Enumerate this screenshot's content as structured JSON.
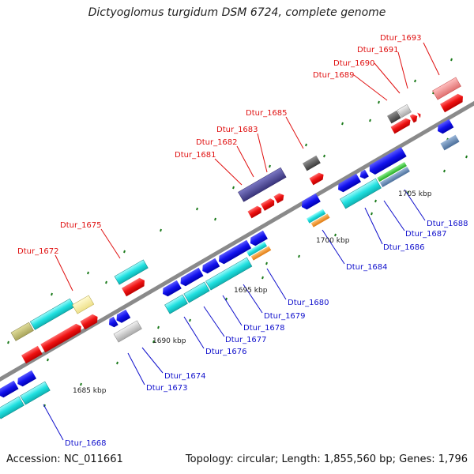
{
  "title": "Dictyoglomus turgidum DSM 6724, complete genome",
  "footer": {
    "accession": "Accession: NC_011661",
    "summary": "Topology: circular; Length: 1,855,560 bp; Genes: 1,796"
  },
  "scale_labels": [
    "1685 kbp",
    "1690 kbp",
    "1695 kbp",
    "1700 kbp",
    "1705 kbp"
  ],
  "top_labels": [
    "Dtur_1672",
    "Dtur_1675",
    "Dtur_1681",
    "Dtur_1682",
    "Dtur_1683",
    "Dtur_1685",
    "Dtur_1689",
    "Dtur_1690",
    "Dtur_1691",
    "Dtur_1693"
  ],
  "bottom_labels": [
    "Dtur_1668",
    "Dtur_1673",
    "Dtur_1674",
    "Dtur_1676",
    "Dtur_1677",
    "Dtur_1678",
    "Dtur_1679",
    "Dtur_1680",
    "Dtur_1684",
    "Dtur_1686",
    "Dtur_1687",
    "Dtur_1688"
  ],
  "colors": {
    "top_label": "#e01010",
    "bottom_label": "#1010cc",
    "backbone": "#888888",
    "tick": "#1a7a1a"
  }
}
